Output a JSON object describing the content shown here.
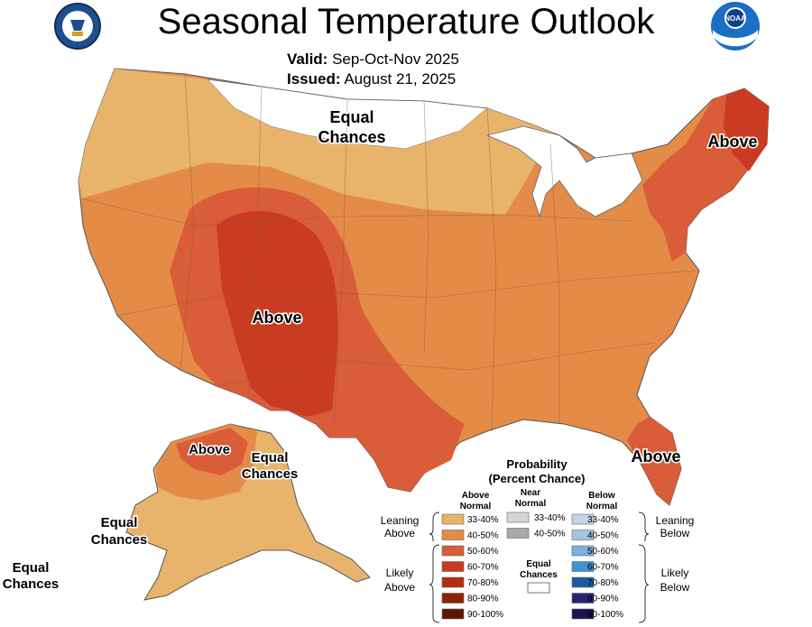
{
  "header": {
    "title": "Seasonal Temperature Outlook",
    "valid_label": "Valid:",
    "valid_value": "Sep-Oct-Nov 2025",
    "issued_label": "Issued:",
    "issued_value": "August 21, 2025"
  },
  "logos": {
    "left": "doc-seal-icon",
    "right": "noaa-logo-icon",
    "noaa_text": "NOAA"
  },
  "map_labels": {
    "north_equal": [
      "Equal",
      "Chances"
    ],
    "southwest_above": "Above",
    "northeast_above": "Above",
    "florida_above": "Above",
    "alaska_above": "Above",
    "alaska_equal_east": [
      "Equal",
      "Chances"
    ],
    "alaska_equal_south": [
      "Equal",
      "Chances"
    ],
    "hawaii_equal": [
      "Equal",
      "Chances"
    ]
  },
  "legend": {
    "title": [
      "Probability",
      "(Percent Chance)"
    ],
    "above_header": [
      "Above",
      "Normal"
    ],
    "near_header": [
      "Near",
      "Normal"
    ],
    "below_header": [
      "Below",
      "Normal"
    ],
    "leaning_above": [
      "Leaning",
      "Above"
    ],
    "likely_above": [
      "Likely",
      "Above"
    ],
    "leaning_below": [
      "Leaning",
      "Below"
    ],
    "likely_below": [
      "Likely",
      "Below"
    ],
    "equal_chances": [
      "Equal",
      "Chances"
    ],
    "above": [
      {
        "range": "33-40%",
        "color": "#e8b46c"
      },
      {
        "range": "40-50%",
        "color": "#e48b48"
      },
      {
        "range": "50-60%",
        "color": "#d95d38"
      },
      {
        "range": "60-70%",
        "color": "#c93b22"
      },
      {
        "range": "70-80%",
        "color": "#b02e12"
      },
      {
        "range": "80-90%",
        "color": "#8a2408"
      },
      {
        "range": "90-100%",
        "color": "#5a1804"
      }
    ],
    "near": [
      {
        "range": "33-40%",
        "color": "#d6d6d6"
      },
      {
        "range": "40-50%",
        "color": "#a8a8a8"
      }
    ],
    "below": [
      {
        "range": "33-40%",
        "color": "#c5d3ea"
      },
      {
        "range": "40-50%",
        "color": "#a6c2e3"
      },
      {
        "range": "50-60%",
        "color": "#7cb0de"
      },
      {
        "range": "60-70%",
        "color": "#3e93d4"
      },
      {
        "range": "70-80%",
        "color": "#1a5aa5"
      },
      {
        "range": "80-90%",
        "color": "#252474"
      },
      {
        "range": "90-100%",
        "color": "#1a1550"
      }
    ]
  }
}
